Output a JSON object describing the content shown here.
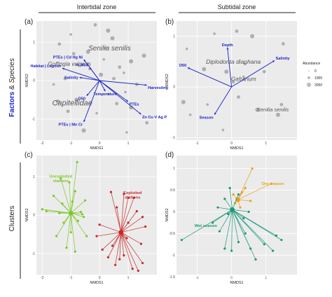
{
  "zones": {
    "left": "Intertidal zone",
    "right": "Subtidal zone"
  },
  "side_labels": {
    "top_a": "Factors",
    "top_amp": "&",
    "top_b": "Species",
    "bottom": "Clusters"
  },
  "panels": {
    "a": {
      "letter": "(a)",
      "xlabel": "NMDS1",
      "ylabel": "NMDS2"
    },
    "b": {
      "letter": "(b)",
      "xlabel": "NMDS1",
      "ylabel": "NMDS2"
    },
    "c": {
      "letter": "(c)",
      "xlabel": "NMDS1",
      "ylabel": "NMDS2"
    },
    "d": {
      "letter": "(d)",
      "xlabel": "NMDS1",
      "ylabel": "NMDS2"
    }
  },
  "legend": {
    "title": "Abundance",
    "entries": [
      "0",
      "1000",
      "2000"
    ]
  },
  "colors": {
    "vector": "#1a22c8",
    "point": "#9a9a9a",
    "panel_bg": "#ebebeb",
    "unexploited": "#7cc82a",
    "exploited": "#c8282a",
    "dry": "#e8a01c",
    "wet": "#1a9a78"
  },
  "chart_data": [
    {
      "panel": "a",
      "type": "scatter",
      "title": "Intertidal zone",
      "xlabel": "NMDS1",
      "ylabel": "NMDS2",
      "xlim": [
        -2.2,
        2.0
      ],
      "ylim": [
        -1.55,
        1.55
      ],
      "xticks": [
        -2,
        -1,
        0,
        1
      ],
      "yticks": [
        -1,
        0,
        1
      ],
      "vectors": [
        {
          "label": "PTEs | Cd Hg Ni",
          "x": -0.55,
          "y": 0.55
        },
        {
          "label": "Habitat | Lagoon",
          "x": -1.3,
          "y": 0.32
        },
        {
          "label": "Salinity",
          "x": -0.7,
          "y": 0.08
        },
        {
          "label": "% Mud",
          "x": -0.35,
          "y": 0.35
        },
        {
          "label": "Harvesting",
          "x": 1.65,
          "y": -0.12
        },
        {
          "label": "Temperature",
          "x": 0.2,
          "y": -0.28
        },
        {
          "label": "D50",
          "x": -0.45,
          "y": -0.4
        },
        {
          "label": "PTEs | Mn Cr",
          "x": -0.55,
          "y": -1.08
        },
        {
          "label": "PTEs",
          "x": 1.0,
          "y": -0.55
        },
        {
          "label": "Zn Cu V Ag P",
          "x": 1.45,
          "y": -0.88
        }
      ],
      "big_species": [
        "Senilia senilis",
        "Golfingia vulgaris",
        "Capitellidae"
      ],
      "species_points": [
        [
          -1.0,
          1.2
        ],
        [
          -0.15,
          1.45
        ],
        [
          0.45,
          1.1
        ],
        [
          0.2,
          0.85
        ],
        [
          -1.4,
          0.95
        ],
        [
          -0.4,
          0.75
        ],
        [
          0.15,
          0.55
        ],
        [
          0.7,
          0.35
        ],
        [
          1.1,
          0.5
        ],
        [
          0.85,
          0.2
        ],
        [
          1.3,
          -0.1
        ],
        [
          1.55,
          0.65
        ],
        [
          -1.6,
          -0.1
        ],
        [
          -1.2,
          0.05
        ],
        [
          -0.8,
          -0.5
        ],
        [
          0.3,
          -0.35
        ],
        [
          0.6,
          -0.6
        ],
        [
          1.1,
          -0.7
        ],
        [
          -0.1,
          -0.85
        ],
        [
          -1.1,
          -0.8
        ],
        [
          -0.55,
          -1.3
        ],
        [
          0.95,
          -1.35
        ],
        [
          1.65,
          -1.1
        ],
        [
          -1.45,
          -0.55
        ],
        [
          -0.35,
          0.3
        ],
        [
          0.5,
          0.05
        ],
        [
          0.05,
          0.15
        ],
        [
          0.9,
          -0.3
        ],
        [
          -0.9,
          0.7
        ],
        [
          0.3,
          1.3
        ]
      ]
    },
    {
      "panel": "b",
      "type": "scatter",
      "title": "Subtidal zone",
      "xlabel": "NMDS1",
      "ylabel": "NMDS2",
      "xlim": [
        -1.6,
        1.9
      ],
      "ylim": [
        -1.05,
        1.3
      ],
      "xticks": [
        -1,
        0,
        1
      ],
      "yticks": [
        -1,
        0,
        1
      ],
      "vectors": [
        {
          "label": "Depth",
          "x": -0.12,
          "y": 0.78
        },
        {
          "label": "Salinity",
          "x": 1.25,
          "y": 0.52
        },
        {
          "label": "D50",
          "x": -1.28,
          "y": 0.38
        },
        {
          "label": "Season",
          "x": -0.5,
          "y": -0.55
        }
      ],
      "big_species": [
        "Diplodonta diaphana",
        "Gafrarium",
        "Senilia senilis"
      ],
      "species_points": [
        [
          -0.5,
          1.05
        ],
        [
          0.15,
          1.1
        ],
        [
          0.6,
          1.0
        ],
        [
          -1.3,
          0.75
        ],
        [
          1.5,
          0.85
        ],
        [
          -0.8,
          0.35
        ],
        [
          0.4,
          0.45
        ],
        [
          0.95,
          0.3
        ],
        [
          -1.4,
          -0.3
        ],
        [
          -0.7,
          -0.35
        ],
        [
          0.2,
          -0.2
        ],
        [
          0.75,
          -0.45
        ],
        [
          -1.2,
          -0.55
        ],
        [
          1.45,
          -0.35
        ],
        [
          1.35,
          -0.55
        ],
        [
          -0.25,
          -0.85
        ],
        [
          0.05,
          0.1
        ],
        [
          -0.15,
          0.3
        ],
        [
          0.35,
          0.2
        ]
      ]
    },
    {
      "panel": "c",
      "type": "scatter",
      "xlabel": "NMDS1",
      "ylabel": "NMDS2",
      "xlim": [
        -2.2,
        2.0
      ],
      "ylim": [
        -1.55,
        1.55
      ],
      "xticks": [
        -2,
        -1,
        0,
        1
      ],
      "yticks": [
        -1,
        0,
        1
      ],
      "series": [
        {
          "name": "Unexploited stations",
          "centroid": [
            -1.0,
            0.05
          ],
          "points": [
            [
              -0.78,
              1.38
            ],
            [
              -1.35,
              0.95
            ],
            [
              -1.05,
              0.85
            ],
            [
              -0.85,
              0.62
            ],
            [
              -1.6,
              0.5
            ],
            [
              -0.5,
              0.38
            ],
            [
              -2.0,
              0.15
            ],
            [
              -1.85,
              0.1
            ],
            [
              -1.4,
              0.05
            ],
            [
              -0.65,
              0.08
            ],
            [
              -0.6,
              0.02
            ],
            [
              -0.75,
              -0.15
            ],
            [
              -0.55,
              -0.05
            ],
            [
              -1.5,
              -0.55
            ],
            [
              -0.85,
              -0.95
            ],
            [
              -1.15,
              -0.85
            ],
            [
              -0.45,
              -0.55
            ],
            [
              -1.0,
              -0.45
            ],
            [
              -1.3,
              0.3
            ],
            [
              -0.95,
              0.35
            ],
            [
              -1.25,
              -0.2
            ]
          ]
        },
        {
          "name": "Exploited stations",
          "centroid": [
            0.75,
            -0.45
          ],
          "points": [
            [
              0.4,
              0.6
            ],
            [
              0.85,
              0.55
            ],
            [
              1.0,
              0.45
            ],
            [
              1.2,
              0.45
            ],
            [
              0.6,
              0.2
            ],
            [
              1.3,
              0.1
            ],
            [
              1.5,
              -0.05
            ],
            [
              0.0,
              -0.25
            ],
            [
              -0.1,
              -0.55
            ],
            [
              0.1,
              -0.9
            ],
            [
              0.3,
              -1.1
            ],
            [
              0.55,
              -1.3
            ],
            [
              0.7,
              -1.15
            ],
            [
              0.85,
              -1.05
            ],
            [
              1.15,
              -1.4
            ],
            [
              1.35,
              -1.45
            ],
            [
              1.5,
              -1.25
            ],
            [
              1.45,
              -0.75
            ],
            [
              1.6,
              -0.3
            ],
            [
              0.45,
              -0.8
            ],
            [
              1.0,
              -0.2
            ],
            [
              0.95,
              -0.6
            ]
          ]
        }
      ]
    },
    {
      "panel": "d",
      "type": "scatter",
      "xlabel": "NMDS1",
      "ylabel": "NMDS2",
      "xlim": [
        -1.6,
        1.9
      ],
      "ylim": [
        -1.45,
        1.3
      ],
      "xticks": [
        -1,
        0,
        1
      ],
      "yticks": [
        -1.5,
        -1,
        -0.5,
        0,
        0.5,
        1
      ],
      "series": [
        {
          "name": "Dry season",
          "centroid": [
            0.18,
            0.28
          ],
          "points": [
            [
              0.6,
              1.0
            ],
            [
              1.15,
              0.65
            ],
            [
              0.4,
              0.55
            ],
            [
              0.3,
              0.45
            ],
            [
              0.05,
              0.4
            ],
            [
              0.55,
              0.25
            ],
            [
              0.25,
              0.1
            ],
            [
              0.1,
              0.2
            ]
          ]
        },
        {
          "name": "Wet season",
          "centroid": [
            0.02,
            0.05
          ],
          "points": [
            [
              -0.05,
              0.55
            ],
            [
              0.2,
              0.4
            ],
            [
              -0.2,
              0.3
            ],
            [
              -0.4,
              0.1
            ],
            [
              0.5,
              0.0
            ],
            [
              -0.1,
              -0.05
            ],
            [
              0.35,
              -0.15
            ],
            [
              -1.45,
              -0.65
            ],
            [
              -0.55,
              -0.25
            ],
            [
              -0.35,
              -0.45
            ],
            [
              -0.2,
              -0.85
            ],
            [
              0.0,
              -0.9
            ],
            [
              0.2,
              -0.7
            ],
            [
              0.55,
              -0.85
            ],
            [
              0.95,
              -0.75
            ],
            [
              1.3,
              -0.55
            ],
            [
              1.45,
              -0.65
            ],
            [
              1.2,
              -0.9
            ],
            [
              0.7,
              -1.1
            ],
            [
              0.4,
              -0.5
            ]
          ]
        }
      ]
    }
  ]
}
